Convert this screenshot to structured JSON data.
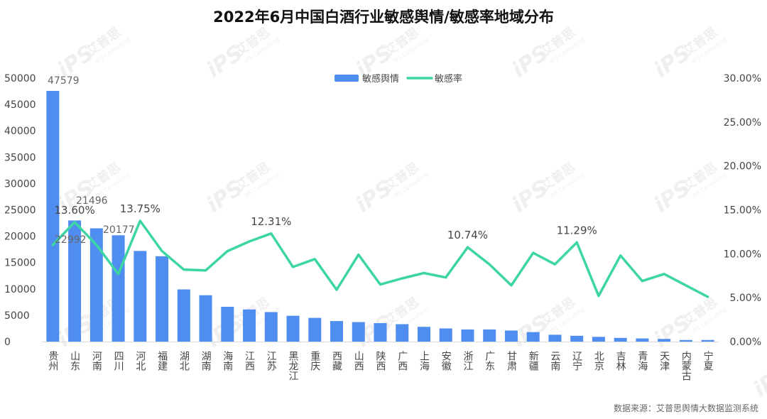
{
  "chart_data": {
    "type": "bar",
    "title": "2022年6月中国白酒行业敏感舆情/敏感率地域分布",
    "categories": [
      "贵州",
      "山东",
      "河南",
      "四川",
      "河北",
      "福建",
      "湖北",
      "湖南",
      "海南",
      "江西",
      "江苏",
      "黑龙江",
      "重庆",
      "西藏",
      "山西",
      "陕西",
      "广西",
      "上海",
      "安徽",
      "浙江",
      "广东",
      "甘肃",
      "新疆",
      "云南",
      "辽宁",
      "北京",
      "吉林",
      "青海",
      "天津",
      "内蒙古",
      "宁夏"
    ],
    "legend": {
      "position": "top-center",
      "entries": [
        "敏感舆情",
        "敏感率"
      ]
    },
    "series": [
      {
        "name": "敏感舆情",
        "type": "bar",
        "axis": "left",
        "color": "#4F8EF0",
        "values": [
          47579,
          22992,
          21496,
          20177,
          17200,
          16200,
          9900,
          8800,
          6600,
          6100,
          5600,
          4900,
          4500,
          3900,
          3700,
          3500,
          3300,
          2800,
          2500,
          2300,
          2300,
          2100,
          1800,
          1300,
          1100,
          900,
          700,
          600,
          500,
          300,
          300
        ],
        "labels": [
          {
            "index": 0,
            "text": "47579"
          },
          {
            "index": 1,
            "text": "22992"
          },
          {
            "index": 2,
            "text": "21496"
          },
          {
            "index": 3,
            "text": "20177"
          }
        ]
      },
      {
        "name": "敏感率",
        "type": "line",
        "axis": "right",
        "color": "#3DD6A3",
        "values": [
          0.11,
          0.136,
          0.11,
          0.077,
          0.1375,
          0.103,
          0.082,
          0.081,
          0.103,
          0.114,
          0.1231,
          0.085,
          0.094,
          0.059,
          0.099,
          0.065,
          0.072,
          0.078,
          0.073,
          0.1074,
          0.088,
          0.064,
          0.101,
          0.088,
          0.1129,
          0.052,
          0.098,
          0.069,
          0.077,
          0.064,
          0.051
        ],
        "labels": [
          {
            "index": 1,
            "text": "13.60%"
          },
          {
            "index": 4,
            "text": "13.75%"
          },
          {
            "index": 10,
            "text": "12.31%"
          },
          {
            "index": 19,
            "text": "10.74%"
          },
          {
            "index": 24,
            "text": "11.29%"
          }
        ]
      }
    ],
    "y_left": {
      "min": 0,
      "max": 50000,
      "ticks": [
        "0",
        "5000",
        "10000",
        "15000",
        "20000",
        "25000",
        "30000",
        "35000",
        "40000",
        "45000",
        "50000"
      ]
    },
    "y_right": {
      "min": 0,
      "max": 0.3,
      "ticks": [
        "0.00%",
        "5.00%",
        "10.00%",
        "15.00%",
        "20.00%",
        "25.00%",
        "30.00%"
      ]
    },
    "grid": false
  },
  "source_note": "数据来源：艾普思舆情大数据监测系统",
  "watermark": {
    "text": "艾普思",
    "subtext": "IPS Consulting",
    "logo": "iPS"
  }
}
